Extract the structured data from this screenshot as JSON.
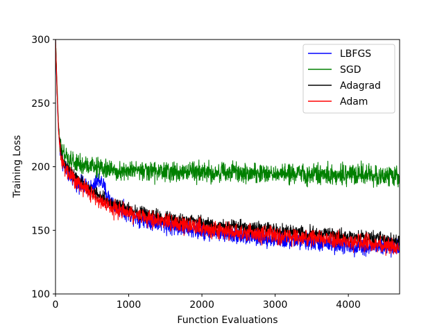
{
  "chart_data": {
    "type": "line",
    "title": "",
    "xlabel": "Function Evaluations",
    "ylabel": "Training Loss",
    "xlim": [
      0,
      4700
    ],
    "ylim": [
      100,
      300
    ],
    "xticks": [
      0,
      1000,
      2000,
      3000,
      4000
    ],
    "yticks": [
      100,
      150,
      200,
      250,
      300
    ],
    "grid": false,
    "legend_position": "top-right",
    "series": [
      {
        "name": "LBFGS",
        "color": "#0000ff",
        "x": [
          0,
          20,
          40,
          60,
          80,
          120,
          160,
          200,
          300,
          400,
          500,
          600,
          650,
          700,
          800,
          900,
          1000,
          1100,
          1200,
          1400,
          1600,
          1800,
          2000,
          2200,
          2400,
          2600,
          2800,
          3000,
          3200,
          3400,
          3600,
          3800,
          4000,
          4200,
          4400,
          4600,
          4700
        ],
        "y": [
          300,
          260,
          230,
          215,
          208,
          200,
          196,
          193,
          188,
          184,
          183,
          190,
          186,
          178,
          170,
          166,
          163,
          161,
          159,
          156,
          153,
          151,
          149,
          148,
          147,
          145,
          144,
          143,
          142,
          141,
          140,
          139,
          138,
          137,
          137,
          136,
          136
        ],
        "noise": 5
      },
      {
        "name": "SGD",
        "color": "#008000",
        "x": [
          0,
          20,
          40,
          60,
          80,
          120,
          160,
          200,
          300,
          400,
          500,
          600,
          700,
          800,
          1000,
          1500,
          2000,
          2500,
          3000,
          3500,
          4000,
          4500,
          4700
        ],
        "y": [
          300,
          265,
          235,
          220,
          212,
          208,
          206,
          205,
          202,
          201,
          200,
          199,
          198,
          197,
          197,
          196,
          196,
          195,
          195,
          194,
          194,
          193,
          193
        ],
        "noise": 6
      },
      {
        "name": "Adagrad",
        "color": "#000000",
        "x": [
          0,
          20,
          40,
          60,
          80,
          120,
          160,
          200,
          300,
          400,
          500,
          600,
          700,
          800,
          1000,
          1200,
          1400,
          1600,
          1800,
          2000,
          2200,
          2400,
          2600,
          2800,
          3000,
          3200,
          3400,
          3600,
          3800,
          4000,
          4200,
          4400,
          4600,
          4700
        ],
        "y": [
          300,
          262,
          232,
          217,
          208,
          202,
          199,
          196,
          191,
          186,
          181,
          177,
          173,
          170,
          166,
          163,
          161,
          159,
          157,
          156,
          154,
          153,
          152,
          151,
          150,
          149,
          148,
          147,
          146,
          145,
          144,
          143,
          142,
          141
        ],
        "noise": 4
      },
      {
        "name": "Adam",
        "color": "#ff0000",
        "x": [
          0,
          20,
          40,
          60,
          80,
          120,
          160,
          200,
          300,
          400,
          500,
          600,
          700,
          800,
          1000,
          1200,
          1400,
          1600,
          1800,
          2000,
          2200,
          2400,
          2600,
          2800,
          3000,
          3200,
          3400,
          3600,
          3800,
          4000,
          4200,
          4400,
          4600,
          4700
        ],
        "y": [
          300,
          262,
          230,
          215,
          206,
          200,
          197,
          194,
          188,
          183,
          178,
          174,
          170,
          167,
          163,
          160,
          158,
          156,
          154,
          152,
          150,
          149,
          148,
          147,
          146,
          145,
          144,
          143,
          142,
          141,
          140,
          139,
          137,
          136
        ],
        "noise": 5
      }
    ]
  }
}
